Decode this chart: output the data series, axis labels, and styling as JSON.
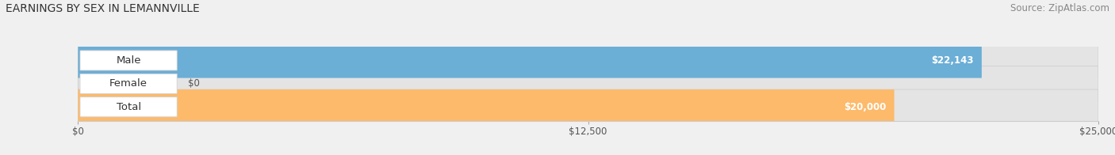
{
  "title": "EARNINGS BY SEX IN LEMANNVILLE",
  "source": "Source: ZipAtlas.com",
  "categories": [
    "Male",
    "Female",
    "Total"
  ],
  "values": [
    22143,
    0,
    20000
  ],
  "bar_colors": [
    "#6baed6",
    "#f799b0",
    "#fdba6b"
  ],
  "value_labels": [
    "$22,143",
    "$0",
    "$20,000"
  ],
  "xlim": [
    0,
    25000
  ],
  "xticks": [
    0,
    12500,
    25000
  ],
  "xtick_labels": [
    "$0",
    "$12,500",
    "$25,000"
  ],
  "background_color": "#f0f0f0",
  "bar_background_color": "#e4e4e4",
  "title_fontsize": 10,
  "source_fontsize": 8.5,
  "label_fontsize": 9.5,
  "value_fontsize": 8.5,
  "bar_height": 0.52
}
